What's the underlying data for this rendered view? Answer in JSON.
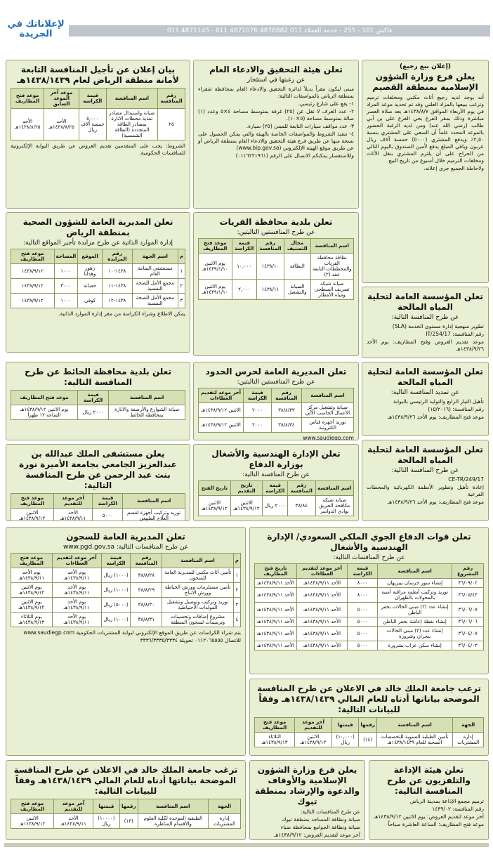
{
  "header": {
    "brand": "لإعلاناتك في الجريدة",
    "phones": "011 4871145 - 011 4871076 فاكس 101 - 255 - خدمة العملاء 011 4870882"
  },
  "ads": [
    {
      "notice": "(إعلان بيع رجيع)",
      "title": "يعلن فرع وزارة الشؤون الإسلامية بمنطقة القصيم",
      "body": [
        "أنه يوجد لديه رجيع أثاث مكتبي ومخلفات ترميم وترغب ببيعها بالمزاد العلني وقد تم تحديد موعد المزاد في يوم الأربعاء الموافق ١٤٣٨/٨/٧هـ بعد صلاة العصر مباشرة وذلك بمقر الفرع بحي الفرع على بن أبي طالب (رضي الله عنه) ومن لديه الرغبة الحضور بالموعد المحدد علماً أن السعي على المشتري بنسبة ٢,٥٠٪ ويدفع المشتري (٥٠٠٠) خمسة آلاف ريال عربون وباقي المبلغ يدفع لأمين الصندوق باليوم التالي من الحراج على أن يلتزم المشتري بنقل الأثاث ومخلفات الترميم خلال أسبوع من تاريخ البيع.",
        "ولاحاطة الجميع جرى إعلانه."
      ]
    },
    {
      "title": "تعلن هيئة التحقيق والادعاء العام",
      "subtitle": "عن رغبتها في استئجار",
      "body": [
        "مبنى ليكون مقراً بديلاً لدائرة التحقيق والادعاء العام بمحافظة شقراء بمنطقة الرياض بالمواصفات التالية:",
        "١- يقع على شارع رئيسي.",
        "٢- عدد الغرف لا تقل عن (٢٥) غرفة بمتوسط مساحة ٤×٥ وعدد (١) صالة بمتوسط مساحة (٥×١٠).",
        "٣- عدد مواقف سيارات التابعة للمبنى (٢٥) سيارة.",
        "٤- تنفيذ الشروط والمواصفات الخاصة بالهيئة والتي يمكن الحصول على نسخة منها عن طريق فرع هيئة التحقيق والادعاء العام بمنطقة الرياض أو عن طريق موقع الهيئة الإلكتروني (www.bip.gov.sa)",
        "وللاستفسار يمكنكم الاتصال على الرقم (٠١١٦٢٢١٩٦١)"
      ]
    },
    {
      "title": "بيان إعلان عن تأجيل المنافسة التابعة لأمانة منطقة الرياض لعام ١٤٣٨/١٤٣٩هـ",
      "table": {
        "head": [
          "رقم المنافسة",
          "اسم المنافسة",
          "قيمة الكراسة",
          "موعد آخر الموعد السابق",
          "موعد فتح المظاريف"
        ],
        "rows": [
          [
            "٢٥",
            "صيانة واستبدال مصادر تغذية محطات الانارة بمصادر الطاقة المتجددة (الطاقة الشمسية)",
            "٥,٠٠٠ خمسة آلاف ريال",
            "الأحد ١٤٣٨/٨/٢٥هـ",
            "الأحد ١٤٣٨/٨/٢٥هـ"
          ]
        ]
      },
      "body": [
        "الشروط: يجب على المتقدمين تقديم العروض عن طريق البوابة الإلكترونية للمنافسات الحكومية."
      ]
    },
    {
      "title": "تعلن المديرية العامة للشؤون الصحية بمنطقة الرياض",
      "subtitle": "إدارة الموارد الذاتية عن طرح مزايدة تأجير المواقع التالية:",
      "table": {
        "head": [
          "م",
          "اسم الجهة",
          "رقم المزايدة",
          "الموقع",
          "المساحة",
          "موعد فتح المظاريف"
        ],
        "rows": [
          [
            "١",
            "مستشفى اليمامة العام",
            "١٤٣٨-١٠",
            "زهور وهدايا",
            "١٠٠٠",
            "١٤٣٨/٩/١٢"
          ],
          [
            "٢",
            "مجمع الأمل للصحة النفسية",
            "١٤٣٨-١١",
            "حضانة",
            "٣٠٠٠",
            "١٤٣٨/٩/١٢"
          ],
          [
            "٣",
            "مجمع الأمل للصحة النفسية",
            "١٤٣٨-١٢",
            "كوفي",
            "١٠٠٠",
            "١٤٣٨/٩/١٢"
          ]
        ]
      },
      "body": [
        "يمكن الاطلاع وشراء الكراسة من مقر إدارة الموارد الذاتية."
      ]
    },
    {
      "title": "تعلن بلدية محافظة القريات",
      "subtitle": "عن طرح المنافستين التاليتين:",
      "table": {
        "head": [
          "اسم المنافسة",
          "مجال التصنيف",
          "رقم المنافسة",
          "قيمة الكراسة",
          "موعد فتح المظاريف"
        ],
        "rows": [
          [
            "نظافة محافظة القريات والمخططات التابعة عقد (٢)",
            "النظافة",
            "١٤٣٨/١٠",
            "١٠,٠٠٠",
            "يوم الاثنين ١٤٣٩/١/١٠هـ"
          ],
          [
            "صيانة شبكة تصريف السطحي ومياه الأمطار",
            "الصيانة والتشغيل",
            "١٤٣٨/١١",
            "٢,٠٠٠",
            "يوم الاثنين ١٤٣٩/١/١٠هـ"
          ]
        ]
      }
    },
    {
      "title": "تعلن المؤسسة العامة لتحلية المياه المالحة",
      "subtitle": "عن طرح المنافسة التالية:",
      "body": [
        "تطوير منهجية إدارة مستوى الخدمة (SLA)",
        "رقم المنافسة: IT/254/17",
        "موعد تقديم العروض وفتح المظاريف: يوم الأحد ١٤٣٨/٩/٢٦هـ"
      ]
    },
    {
      "title": "تعلن بلدية محافظة الحائط عن طرح المنافسة التالية:",
      "table": {
        "head": [
          "اسم المنافسة",
          "قيمة الكراسة",
          "موعد فتح المظاريف"
        ],
        "rows": [
          [
            "صيانة الشوارع والأرصفة والانارة بمحافظة الحائط",
            "٢٠٠٠ ريال",
            "يوم الاثنين ١٤٣٨/٩/١٢هـ الساعة ١٢ ظهراً"
          ]
        ]
      }
    },
    {
      "title": "تعلن المديرية العامة لحرس الحدود",
      "subtitle": "عن طرح المنافستين التاليتين:",
      "table": {
        "head": [
          "اسم المنافسة",
          "رقم المنافسة",
          "قيمة الكراسة",
          "آخر موعد لتقديم العطاءات"
        ],
        "rows": [
          [
            "صيانة وتشغيل مركز الأعمال الحاسب الآلي",
            "٣٨/٨/٣٣",
            "٢٠٠٠",
            "الاثنين ١٤٣٨/٩/١٢هـ"
          ],
          [
            "توريد أجهزة قياس الكترونية",
            "٣٨/٨/٣٤",
            "٢٠٠٠",
            "الاثنين ١٤٣٨/٩/١٢هـ"
          ]
        ]
      },
      "body": [
        "www.saudiegp.com"
      ]
    },
    {
      "title": "تعلن المؤسسة العامة لتحلية المياه المالحة",
      "subtitle": "عن تمديد المنافسة التالية:",
      "body": [
        "تأهيل التيار الرابع والتوليد الرئيسي بالبوابة",
        "رقم المنافسة: (١٥/٢٠١٦)",
        "موعد فتح المظاريف: يوم الأحد ١٤٣٨/٩/٢٦هـ"
      ]
    },
    {
      "title": "يعلن مستشفى الملك عبدالله بن عبدالعزيز الجامعي بجامعة الأميرة نورة بنت عبد الرحمن عن طرح المنافسة التالية:",
      "table": {
        "head": [
          "اسم المنافسة",
          "قيمة الكراسة",
          "آخر موعد للتقديم",
          "موعد فتح المظاريف"
        ],
        "rows": [
          [
            "توريد وتركيب أجهزة لقسم العلاج الطبيعي",
            "٥٠٠٠",
            "الأحد ١٤٣٨/٩/١١هـ",
            "الاثنين ١٤٣٨/٩/١٢هـ"
          ]
        ]
      },
      "body": [
        "www.saudiegp.com"
      ]
    },
    {
      "title": "تعلن الإدارة الهندسية والأشغال بوزارة الدفاع",
      "subtitle": "عن طرح المنافسة التالية:",
      "table": {
        "head": [
          "اسم المنافسة",
          "رقم المنافسة",
          "قيمة الكراسة",
          "تاريخ التقديم",
          "تاريخ الفتح"
        ],
        "rows": [
          [
            "صيانة شبكة مكافحة الحريق بوادي الدواسر",
            "٣٨/٨٤",
            "٢٠٠٠ ريال",
            "الاثنين ١٤٣٨/٩/١٢هـ",
            "الاثنين ١٤٣٨/٩/١٢هـ"
          ]
        ]
      }
    },
    {
      "title": "تعلن المؤسسة العامة لتحلية المياه المالحة",
      "subtitle": "عن طرح المنافسة التالية:",
      "body": [
        "CE-TR/249/17",
        "إعادة تأهيل وتطوير الأنظمة الكهربائية والمحطات الفرعية",
        "موعد فتح المظاريف: يوم الأحد ١٤٣٨/٩/٢٦هـ"
      ]
    },
    {
      "title": "تعلن المديرية العامة للسجون",
      "subtitle": "عن طرح المنافسات التالية: www.pgd.gov.sa",
      "table": {
        "head": [
          "م",
          "اسم المنافسة",
          "رقم المنافسة",
          "قيمة الكراسة",
          "آخر موعد لتقديم العطاءات",
          "موعد فتح المظاريف"
        ],
        "rows": [
          [
            "١",
            "تأمين أثاث مكتبي للمديرية العامة للسجون",
            "٣٨/٨/٢٨",
            "(١٠٠٠) ريال",
            "يوم الأحد ١٤٣٨/٩/١١هـ",
            "يوم الأحد ١٤٣٨/٩/١١هـ"
          ],
          [
            "٢",
            "تأمين مستلزمات وورش الخياطة وورش الانتاج",
            "٣٨/٨/٢٩",
            "(١٠٠٠) ريال",
            "يوم الأحد ١٤٣٨/٩/١١هـ",
            "يوم الاثنين ١٤٣٨/٩/١٢هـ"
          ],
          [
            "٣",
            "توريد وتركيب وتوصيل وتشغيل المولدات الاحتياطية",
            "٣٨/٨/٣٠",
            "(٥٠٠٠) ريال",
            "يوم الأحد ١٤٣٨/٩/١١هـ",
            "يوم الاثنين ١٤٣٨/٩/١٢هـ"
          ],
          [
            "٤",
            "مشروع إضافات وتحسينات وترميمات لسجون المنطقة",
            "٣٨/٨/٣١",
            "(١٠٠٠) ريال",
            "يوم الأحد ١٤٣٨/٩/١١هـ",
            "يوم الثلاثاء ١٤٣٨/٩/١٣هـ"
          ]
        ]
      },
      "body": [
        "يتم شراء الكراسات عن طريق الموقع الإلكتروني لبوابة المشتريات الحكومية www.saudiegp.com",
        "للاتصال ٠١١٢٠٦٥٥٥٥ تحويلة ٣٣٣٦/٣٣٣٥/٣٣٣٤"
      ]
    },
    {
      "title": "تعلن قوات الدفاع الجوي الملكي السعودي/ الإدارة الهندسية والأشغال",
      "subtitle": "عن طرح المنافسات التالية:",
      "table": {
        "head": [
          "رقم المشروع",
          "اسم المنافسة",
          "قيمة الكراسة",
          "آخر موعد لتقديم العطاءات",
          "تاريخ فتح المظاريف"
        ],
        "rows": [
          [
            "٣٦/٠٩/٠٢",
            "إنشاء سور خرسان بيبريهان",
            "٨٠٠٠",
            "الأحد ١٤٣٨/٩/١١هـ",
            "الأحد ١٤٣٨/٩/١١هـ"
          ],
          [
            "٣٦/٠٥/٤٣",
            "توريد وتركيب أنظمة مراقبة أمنية بالمحولات بالظهران",
            "٨٠٠٠",
            "الأحد ١٤٣٨/٩/١١هـ",
            "الأحد ١٤٣٨/٩/١١هـ"
          ],
          [
            "٣٦/٠٦/٠٧",
            "إنشاء عدد (٢) مبنى الحالات بحفر الباطن",
            "٥٠٠٠",
            "الأحد ١٤٣٨/٩/١١هـ",
            "الأحد ١٤٣٨/٩/١١هـ"
          ],
          [
            "٣٦/٠٦/٠٦",
            "إنشاء نقطة إعاشة بحفر الباطن",
            "٥٠٠٠",
            "الأحد ١٤٣٨/٩/١١هـ",
            "الأحد ١٤٣٨/٩/١١هـ"
          ],
          [
            "٣٦/٠٤/٠٧",
            "إنشاء عدد (٢) مبنى الحالات بنجران وشرورة",
            "٥٠٠٠",
            "الأحد ١٤٣٨/٩/١١هـ",
            "الأحد ١٤٣٨/٩/١١هـ"
          ],
          [
            "٣٦/٠٤/٠٣",
            "إنشاء سكن عزاب بشرورة",
            "٥٠٠٠",
            "الأحد ١٤٣٨/٩/١١هـ",
            "الأحد ١٤٣٨/٩/١١هـ"
          ]
        ]
      }
    },
    {
      "title": "ترغب جامعة الملك خالد في الاعلان عن طرح المنافسة الموضحة بياناتها أدناه للعام المالي ١٤٣٨/١٤٣٩هـ وفقاً للبيانات التالية:",
      "table": {
        "head": [
          "الجهة",
          "اسم المنافسة",
          "رقمها",
          "قيمتها",
          "آخر موعد للتقديم",
          "موعد فتح المظاريف"
        ],
        "rows": [
          [
            "إدارة المشتريات",
            "تأمين الطبلية السنوية للتخصصات الصحية للعام ١٤٣٨/١٤٣٩هـ",
            "(١٤)",
            "(١٠,٠٠٠) ريال",
            "الاثنين ١٤٣٨/٩/١٢هـ",
            "الثلاثاء ١٤٣٨/٩/١٣هـ"
          ]
        ]
      }
    },
    {
      "title": "ترغب جامعة الملك خالد في الاعلان عن طرح المنافسة الموضحة بياناتها أدناه للعام المالي ١٤٣٨/١٤٣٩هـ وفقاً للبيانات التالية:",
      "table": {
        "head": [
          "الجهة",
          "اسم المنافسة",
          "رقمها",
          "قيمتها",
          "آخر موعد للتقديم",
          "موعد فتح المظاريف"
        ],
        "rows": [
          [
            "إدارة المشتريات",
            "الطبقية الموحدة لكلية العلوم والأقسام المناظرة",
            "(١٣)",
            "(١٠٠٠٠) ريال",
            "الأحد ١٤٣٨/٩/١١هـ",
            "الاثنين ١٤٣٨/٩/١٢هـ"
          ]
        ]
      }
    },
    {
      "title": "يعلن فرع وزارة الشؤون الإسلامية والأوقاف والدعوة والإرشاد بمنطقة تبوك",
      "body": [
        "عن طرح المنافسات التالية:",
        "صيانة ونظافة المساجد بمنطقة تبوك",
        "صيانة ونظافة الجوامع بمحافظة ضباء",
        "آخر موعد لتقديم العروض: ١٤٣٨/٩/١٢هـ"
      ]
    },
    {
      "title": "تعلن هيئة الإذاعة والتلفزيون عن طرح المنافسة التالية:",
      "body": [
        "ترميم مجمع الإذاعة بمدينة الرياض",
        "رقم المنافسة: ١٤٣٩/٠٢",
        "آخر موعد لتقديم العروض: يوم الاثنين ١٤٣٨/٩/١٢هـ",
        "موعد فتح المظاريف: الساعة العاشرة صباحاً"
      ]
    }
  ]
}
